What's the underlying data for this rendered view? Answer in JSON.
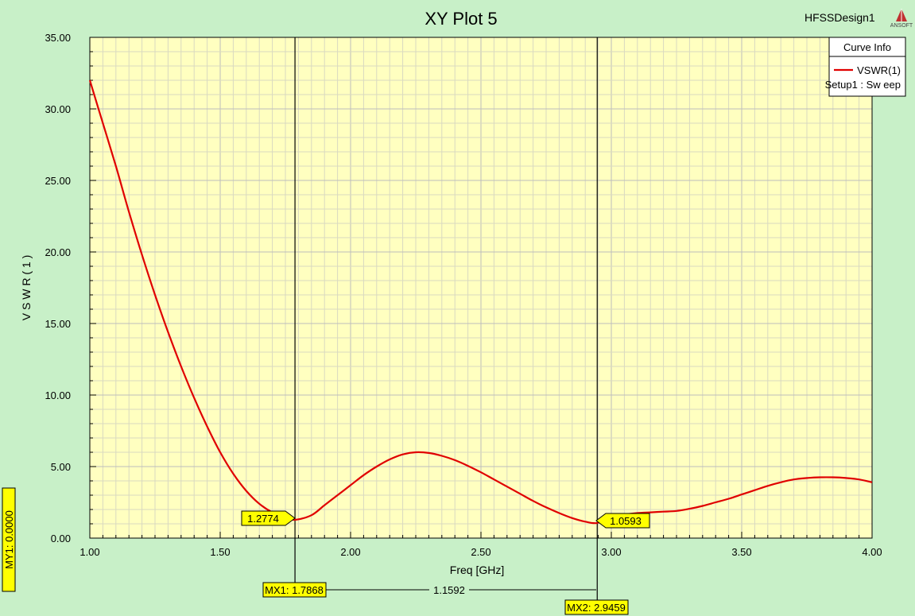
{
  "header": {
    "title": "XY Plot 5",
    "design": "HFSSDesign1",
    "logo_text": "ANSOFT"
  },
  "legend": {
    "title": "Curve Info",
    "series_label": "VSWR(1)",
    "setup_label": "Setup1 : Sw eep"
  },
  "markers": {
    "m1_value_label": "1.2774",
    "m2_value_label": "1.0593",
    "mx1_label": "MX1: 1.7868",
    "mx2_label": "MX2: 2.9459",
    "delta_label": "1.1592",
    "my1_label": "MY1: 0.0000"
  },
  "colors": {
    "background": "#c8f0c8",
    "plot_area": "#ffffc0",
    "curve": "#e00000",
    "marker_label": "#ffff00"
  },
  "chart_data": {
    "type": "line",
    "title": "XY Plot 5",
    "xlabel": "Freq [GHz]",
    "ylabel": "V S W R ( 1 )",
    "xlim": [
      1.0,
      4.0
    ],
    "ylim": [
      0,
      35
    ],
    "x_ticks": [
      "1.00",
      "1.50",
      "2.00",
      "2.50",
      "3.00",
      "3.50",
      "4.00"
    ],
    "y_ticks": [
      "0.00",
      "5.00",
      "10.00",
      "15.00",
      "20.00",
      "25.00",
      "30.00",
      "35.00"
    ],
    "grid": true,
    "legend_position": "top-right",
    "series": [
      {
        "name": "VSWR(1)",
        "color": "#e00000",
        "x": [
          1.0,
          1.05,
          1.1,
          1.15,
          1.2,
          1.25,
          1.3,
          1.35,
          1.4,
          1.45,
          1.5,
          1.55,
          1.6,
          1.65,
          1.7,
          1.75,
          1.7868,
          1.85,
          1.9,
          1.95,
          2.0,
          2.05,
          2.1,
          2.15,
          2.2,
          2.25,
          2.3,
          2.35,
          2.4,
          2.45,
          2.5,
          2.55,
          2.6,
          2.65,
          2.7,
          2.75,
          2.8,
          2.85,
          2.9,
          2.9459,
          3.0,
          3.05,
          3.1,
          3.15,
          3.2,
          3.25,
          3.3,
          3.35,
          3.4,
          3.45,
          3.5,
          3.55,
          3.6,
          3.65,
          3.7,
          3.75,
          3.8,
          3.85,
          3.9,
          3.95,
          4.0
        ],
        "y": [
          32.0,
          29.0,
          26.0,
          22.8,
          19.8,
          17.0,
          14.4,
          12.0,
          9.8,
          7.8,
          6.0,
          4.5,
          3.3,
          2.4,
          1.8,
          1.45,
          1.2774,
          1.6,
          2.3,
          3.0,
          3.7,
          4.4,
          5.0,
          5.5,
          5.85,
          6.0,
          5.95,
          5.75,
          5.45,
          5.05,
          4.6,
          4.1,
          3.6,
          3.1,
          2.6,
          2.15,
          1.75,
          1.4,
          1.15,
          1.0593,
          1.5,
          1.65,
          1.75,
          1.8,
          1.85,
          1.9,
          2.05,
          2.25,
          2.5,
          2.75,
          3.05,
          3.35,
          3.65,
          3.9,
          4.1,
          4.2,
          4.25,
          4.25,
          4.2,
          4.1,
          3.9
        ]
      }
    ],
    "markers": [
      {
        "name": "m1",
        "x": 1.7868,
        "y": 1.2774
      },
      {
        "name": "m2",
        "x": 2.9459,
        "y": 1.0593
      }
    ]
  }
}
